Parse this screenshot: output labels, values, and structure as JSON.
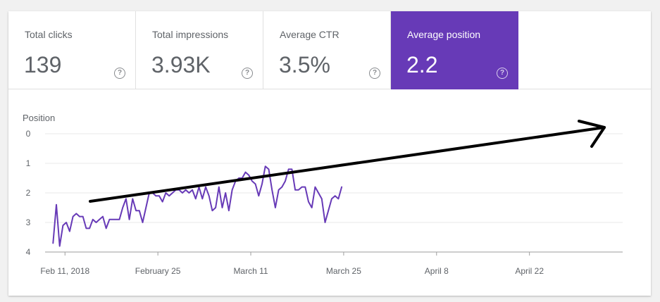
{
  "metrics": [
    {
      "label": "Total clicks",
      "value": "139",
      "help": "?"
    },
    {
      "label": "Total impressions",
      "value": "3.93K",
      "help": "?"
    },
    {
      "label": "Average CTR",
      "value": "3.5%",
      "help": "?"
    },
    {
      "label": "Average position",
      "value": "2.2",
      "help": "?"
    }
  ],
  "colors": {
    "accent": "#673ab7",
    "line": "#673ab7",
    "grid": "#e8e8e8",
    "annotation": "#000000"
  },
  "chart_data": {
    "type": "line",
    "ylabel": "Position",
    "ylim": [
      0,
      4
    ],
    "y_inverted": true,
    "yticks": [
      "0",
      "1",
      "2",
      "3",
      "4"
    ],
    "xticks": [
      {
        "label": "Feb 11, 2018",
        "date": "2018-02-11"
      },
      {
        "label": "February 25",
        "date": "2018-02-25"
      },
      {
        "label": "March 11",
        "date": "2018-03-11"
      },
      {
        "label": "March 25",
        "date": "2018-03-25"
      },
      {
        "label": "April 8",
        "date": "2018-04-08"
      },
      {
        "label": "April 22",
        "date": "2018-04-22"
      }
    ],
    "x_start": "2018-02-08",
    "x_step": "0.5 day",
    "series": [
      {
        "values": [
          3.7,
          2.4,
          3.8,
          3.1,
          3.0,
          3.3,
          2.8,
          2.7,
          2.8,
          2.8,
          3.2,
          3.2,
          2.9,
          3.0,
          2.9,
          2.8,
          3.2,
          2.9,
          2.9,
          2.9,
          2.9,
          2.5,
          2.2,
          2.9,
          2.2,
          2.6,
          2.6,
          3.0,
          2.5,
          2.0,
          2.0,
          2.1,
          2.1,
          2.3,
          2.0,
          2.1,
          2.0,
          1.9,
          1.9,
          2.0,
          1.9,
          2.0,
          1.9,
          2.2,
          1.8,
          2.2,
          1.8,
          2.1,
          2.6,
          2.5,
          1.8,
          2.5,
          2.0,
          2.6,
          1.9,
          1.6,
          1.5,
          1.5,
          1.3,
          1.4,
          1.6,
          1.7,
          2.1,
          1.7,
          1.1,
          1.2,
          1.9,
          2.5,
          1.9,
          1.8,
          1.6,
          1.2,
          1.2,
          1.9,
          1.9,
          1.8,
          1.8,
          2.3,
          2.5,
          1.8,
          2.0,
          2.2,
          3.0,
          2.6,
          2.2,
          2.1,
          2.2,
          1.8
        ]
      }
    ],
    "annotation": "arrow"
  }
}
